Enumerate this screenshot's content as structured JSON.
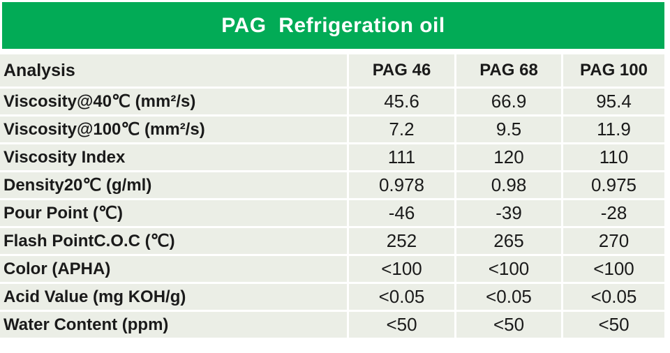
{
  "title": "PAG  Refrigeration oil",
  "colors": {
    "title_bar_green": "#02ab56",
    "title_text": "#ffffff",
    "cell_background": "#ebeee6",
    "grid_lines": "#ffffff",
    "body_text": "#1a1a1a"
  },
  "table": {
    "columns": [
      "Analysis",
      "PAG 46",
      "PAG 68",
      "PAG 100"
    ],
    "rows": [
      {
        "label": "Viscosity@40℃ (mm²/s)",
        "values": [
          "45.6",
          "66.9",
          "95.4"
        ]
      },
      {
        "label": "Viscosity@100℃ (mm²/s)",
        "values": [
          "7.2",
          "9.5",
          "11.9"
        ]
      },
      {
        "label": "Viscosity Index",
        "values": [
          "111",
          "120",
          "110"
        ]
      },
      {
        "label": "Density20℃ (g/ml)",
        "values": [
          "0.978",
          "0.98",
          "0.975"
        ]
      },
      {
        "label": "Pour Point (℃)",
        "values": [
          "-46",
          "-39",
          "-28"
        ]
      },
      {
        "label": "Flash PointC.O.C (℃)",
        "values": [
          "252",
          "265",
          "270"
        ]
      },
      {
        "label": "Color (APHA)",
        "values": [
          "<100",
          "<100",
          "<100"
        ]
      },
      {
        "label": "Acid Value (mg KOH/g)",
        "values": [
          "<0.05",
          "<0.05",
          "<0.05"
        ]
      },
      {
        "label": "Water Content (ppm)",
        "values": [
          "<50",
          "<50",
          "<50"
        ]
      }
    ]
  }
}
